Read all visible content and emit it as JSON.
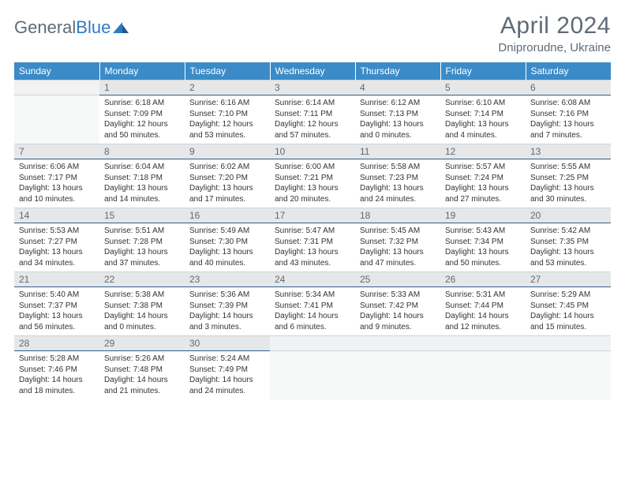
{
  "logo": {
    "text1": "General",
    "text2": "Blue"
  },
  "title": "April 2024",
  "location": "Dniprorudne, Ukraine",
  "colors": {
    "header_bg": "#3b8bc8",
    "header_text": "#ffffff",
    "daynum_bg": "#e6e7e8",
    "daynum_border": "#2f5e87",
    "text_muted": "#5f6b76"
  },
  "daysOfWeek": [
    "Sunday",
    "Monday",
    "Tuesday",
    "Wednesday",
    "Thursday",
    "Friday",
    "Saturday"
  ],
  "weeks": [
    [
      null,
      {
        "n": "1",
        "sr": "6:18 AM",
        "ss": "7:09 PM",
        "dl": "12 hours and 50 minutes."
      },
      {
        "n": "2",
        "sr": "6:16 AM",
        "ss": "7:10 PM",
        "dl": "12 hours and 53 minutes."
      },
      {
        "n": "3",
        "sr": "6:14 AM",
        "ss": "7:11 PM",
        "dl": "12 hours and 57 minutes."
      },
      {
        "n": "4",
        "sr": "6:12 AM",
        "ss": "7:13 PM",
        "dl": "13 hours and 0 minutes."
      },
      {
        "n": "5",
        "sr": "6:10 AM",
        "ss": "7:14 PM",
        "dl": "13 hours and 4 minutes."
      },
      {
        "n": "6",
        "sr": "6:08 AM",
        "ss": "7:16 PM",
        "dl": "13 hours and 7 minutes."
      }
    ],
    [
      {
        "n": "7",
        "sr": "6:06 AM",
        "ss": "7:17 PM",
        "dl": "13 hours and 10 minutes."
      },
      {
        "n": "8",
        "sr": "6:04 AM",
        "ss": "7:18 PM",
        "dl": "13 hours and 14 minutes."
      },
      {
        "n": "9",
        "sr": "6:02 AM",
        "ss": "7:20 PM",
        "dl": "13 hours and 17 minutes."
      },
      {
        "n": "10",
        "sr": "6:00 AM",
        "ss": "7:21 PM",
        "dl": "13 hours and 20 minutes."
      },
      {
        "n": "11",
        "sr": "5:58 AM",
        "ss": "7:23 PM",
        "dl": "13 hours and 24 minutes."
      },
      {
        "n": "12",
        "sr": "5:57 AM",
        "ss": "7:24 PM",
        "dl": "13 hours and 27 minutes."
      },
      {
        "n": "13",
        "sr": "5:55 AM",
        "ss": "7:25 PM",
        "dl": "13 hours and 30 minutes."
      }
    ],
    [
      {
        "n": "14",
        "sr": "5:53 AM",
        "ss": "7:27 PM",
        "dl": "13 hours and 34 minutes."
      },
      {
        "n": "15",
        "sr": "5:51 AM",
        "ss": "7:28 PM",
        "dl": "13 hours and 37 minutes."
      },
      {
        "n": "16",
        "sr": "5:49 AM",
        "ss": "7:30 PM",
        "dl": "13 hours and 40 minutes."
      },
      {
        "n": "17",
        "sr": "5:47 AM",
        "ss": "7:31 PM",
        "dl": "13 hours and 43 minutes."
      },
      {
        "n": "18",
        "sr": "5:45 AM",
        "ss": "7:32 PM",
        "dl": "13 hours and 47 minutes."
      },
      {
        "n": "19",
        "sr": "5:43 AM",
        "ss": "7:34 PM",
        "dl": "13 hours and 50 minutes."
      },
      {
        "n": "20",
        "sr": "5:42 AM",
        "ss": "7:35 PM",
        "dl": "13 hours and 53 minutes."
      }
    ],
    [
      {
        "n": "21",
        "sr": "5:40 AM",
        "ss": "7:37 PM",
        "dl": "13 hours and 56 minutes."
      },
      {
        "n": "22",
        "sr": "5:38 AM",
        "ss": "7:38 PM",
        "dl": "14 hours and 0 minutes."
      },
      {
        "n": "23",
        "sr": "5:36 AM",
        "ss": "7:39 PM",
        "dl": "14 hours and 3 minutes."
      },
      {
        "n": "24",
        "sr": "5:34 AM",
        "ss": "7:41 PM",
        "dl": "14 hours and 6 minutes."
      },
      {
        "n": "25",
        "sr": "5:33 AM",
        "ss": "7:42 PM",
        "dl": "14 hours and 9 minutes."
      },
      {
        "n": "26",
        "sr": "5:31 AM",
        "ss": "7:44 PM",
        "dl": "14 hours and 12 minutes."
      },
      {
        "n": "27",
        "sr": "5:29 AM",
        "ss": "7:45 PM",
        "dl": "14 hours and 15 minutes."
      }
    ],
    [
      {
        "n": "28",
        "sr": "5:28 AM",
        "ss": "7:46 PM",
        "dl": "14 hours and 18 minutes."
      },
      {
        "n": "29",
        "sr": "5:26 AM",
        "ss": "7:48 PM",
        "dl": "14 hours and 21 minutes."
      },
      {
        "n": "30",
        "sr": "5:24 AM",
        "ss": "7:49 PM",
        "dl": "14 hours and 24 minutes."
      },
      null,
      null,
      null,
      null
    ]
  ],
  "labels": {
    "sunrise": "Sunrise:",
    "sunset": "Sunset:",
    "daylight": "Daylight:"
  }
}
